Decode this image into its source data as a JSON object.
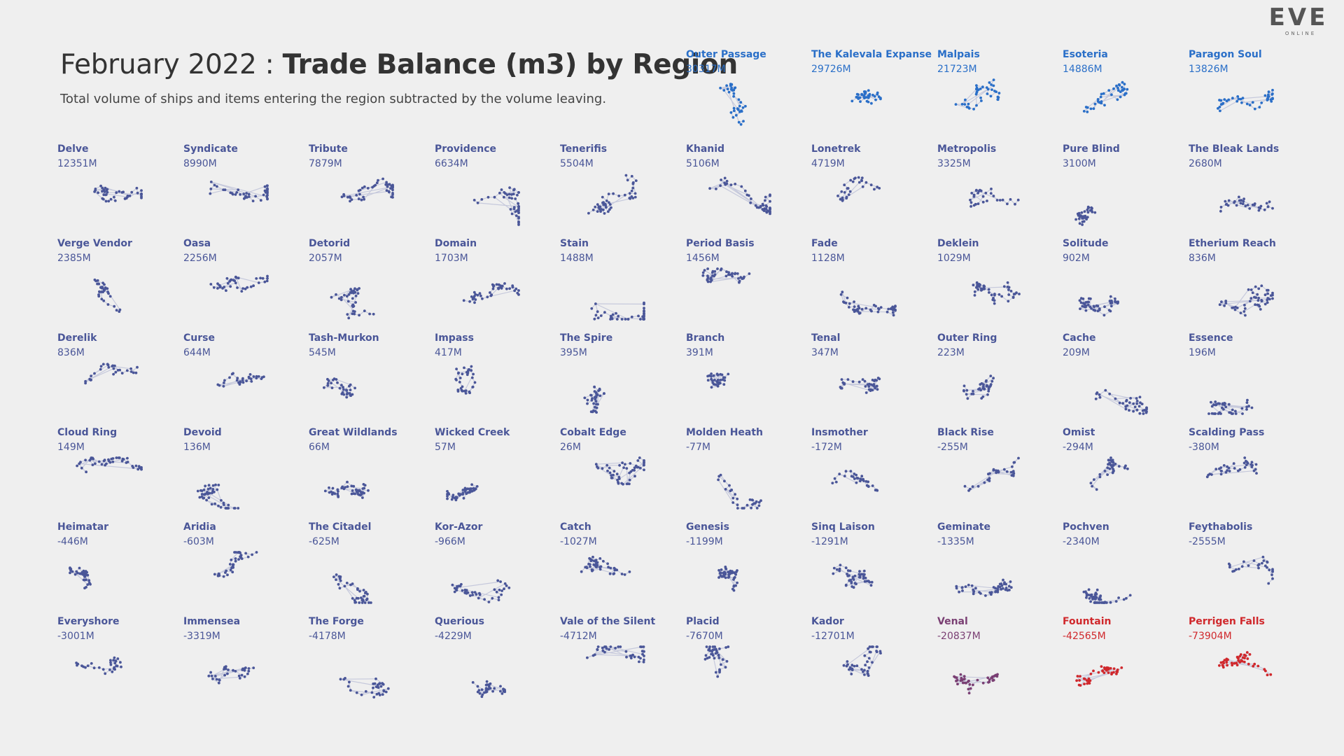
{
  "header": {
    "title_date": "February 2022 :",
    "title_main": "Trade Balance (m3) by Region",
    "subtitle": "Total volume of ships and items entering the region subtracted by the volume leaving."
  },
  "logo": {
    "word": "EVE",
    "sub": "ONLINE"
  },
  "colors": {
    "positive_high": "#2a6fc8",
    "neutral": "#4a5698",
    "negative": "#7a3f73",
    "negative_high": "#d0282c",
    "link": "#c6c9dc"
  },
  "chart_data": {
    "type": "small-multiples",
    "title": "February 2022 : Trade Balance (m3) by Region",
    "unit": "M m3",
    "regions": [
      {
        "name": "Outer Passage",
        "label": "30317M",
        "value": 30317
      },
      {
        "name": "The Kalevala Expanse",
        "label": "29726M",
        "value": 29726
      },
      {
        "name": "Malpais",
        "label": "21723M",
        "value": 21723
      },
      {
        "name": "Esoteria",
        "label": "14886M",
        "value": 14886
      },
      {
        "name": "Paragon Soul",
        "label": "13826M",
        "value": 13826
      },
      {
        "name": "Delve",
        "label": "12351M",
        "value": 12351
      },
      {
        "name": "Syndicate",
        "label": "8990M",
        "value": 8990
      },
      {
        "name": "Tribute",
        "label": "7879M",
        "value": 7879
      },
      {
        "name": "Providence",
        "label": "6634M",
        "value": 6634
      },
      {
        "name": "Tenerifis",
        "label": "5504M",
        "value": 5504
      },
      {
        "name": "Khanid",
        "label": "5106M",
        "value": 5106
      },
      {
        "name": "Lonetrek",
        "label": "4719M",
        "value": 4719
      },
      {
        "name": "Metropolis",
        "label": "3325M",
        "value": 3325
      },
      {
        "name": "Pure Blind",
        "label": "3100M",
        "value": 3100
      },
      {
        "name": "The Bleak Lands",
        "label": "2680M",
        "value": 2680
      },
      {
        "name": "Verge Vendor",
        "label": "2385M",
        "value": 2385
      },
      {
        "name": "Oasa",
        "label": "2256M",
        "value": 2256
      },
      {
        "name": "Detorid",
        "label": "2057M",
        "value": 2057
      },
      {
        "name": "Domain",
        "label": "1703M",
        "value": 1703
      },
      {
        "name": "Stain",
        "label": "1488M",
        "value": 1488
      },
      {
        "name": "Period Basis",
        "label": "1456M",
        "value": 1456
      },
      {
        "name": "Fade",
        "label": "1128M",
        "value": 1128
      },
      {
        "name": "Deklein",
        "label": "1029M",
        "value": 1029
      },
      {
        "name": "Solitude",
        "label": "902M",
        "value": 902
      },
      {
        "name": "Etherium Reach",
        "label": "836M",
        "value": 836
      },
      {
        "name": "Derelik",
        "label": "836M",
        "value": 836
      },
      {
        "name": "Curse",
        "label": "644M",
        "value": 644
      },
      {
        "name": "Tash-Murkon",
        "label": "545M",
        "value": 545
      },
      {
        "name": "Impass",
        "label": "417M",
        "value": 417
      },
      {
        "name": "The Spire",
        "label": "395M",
        "value": 395
      },
      {
        "name": "Branch",
        "label": "391M",
        "value": 391
      },
      {
        "name": "Tenal",
        "label": "347M",
        "value": 347
      },
      {
        "name": "Outer Ring",
        "label": "223M",
        "value": 223
      },
      {
        "name": "Cache",
        "label": "209M",
        "value": 209
      },
      {
        "name": "Essence",
        "label": "196M",
        "value": 196
      },
      {
        "name": "Cloud Ring",
        "label": "149M",
        "value": 149
      },
      {
        "name": "Devoid",
        "label": "136M",
        "value": 136
      },
      {
        "name": "Great Wildlands",
        "label": "66M",
        "value": 66
      },
      {
        "name": "Wicked Creek",
        "label": "57M",
        "value": 57
      },
      {
        "name": "Cobalt Edge",
        "label": "26M",
        "value": 26
      },
      {
        "name": "Molden Heath",
        "label": "-77M",
        "value": -77
      },
      {
        "name": "Insmother",
        "label": "-172M",
        "value": -172
      },
      {
        "name": "Black Rise",
        "label": "-255M",
        "value": -255
      },
      {
        "name": "Omist",
        "label": "-294M",
        "value": -294
      },
      {
        "name": "Scalding Pass",
        "label": "-380M",
        "value": -380
      },
      {
        "name": "Heimatar",
        "label": "-446M",
        "value": -446
      },
      {
        "name": "Aridia",
        "label": "-603M",
        "value": -603
      },
      {
        "name": "The Citadel",
        "label": "-625M",
        "value": -625
      },
      {
        "name": "Kor-Azor",
        "label": "-966M",
        "value": -966
      },
      {
        "name": "Catch",
        "label": "-1027M",
        "value": -1027
      },
      {
        "name": "Genesis",
        "label": "-1199M",
        "value": -1199
      },
      {
        "name": "Sinq Laison",
        "label": "-1291M",
        "value": -1291
      },
      {
        "name": "Geminate",
        "label": "-1335M",
        "value": -1335
      },
      {
        "name": "Pochven",
        "label": "-2340M",
        "value": -2340
      },
      {
        "name": "Feythabolis",
        "label": "-2555M",
        "value": -2555
      },
      {
        "name": "Everyshore",
        "label": "-3001M",
        "value": -3001
      },
      {
        "name": "Immensea",
        "label": "-3319M",
        "value": -3319
      },
      {
        "name": "The Forge",
        "label": "-4178M",
        "value": -4178
      },
      {
        "name": "Querious",
        "label": "-4229M",
        "value": -4229
      },
      {
        "name": "Vale of the Silent",
        "label": "-4712M",
        "value": -4712
      },
      {
        "name": "Placid",
        "label": "-7670M",
        "value": -7670
      },
      {
        "name": "Kador",
        "label": "-12701M",
        "value": -12701
      },
      {
        "name": "Venal",
        "label": "-20837M",
        "value": -20837
      },
      {
        "name": "Fountain",
        "label": "-42565M",
        "value": -42565
      },
      {
        "name": "Perrigen Falls",
        "label": "-73904M",
        "value": -73904
      }
    ]
  }
}
